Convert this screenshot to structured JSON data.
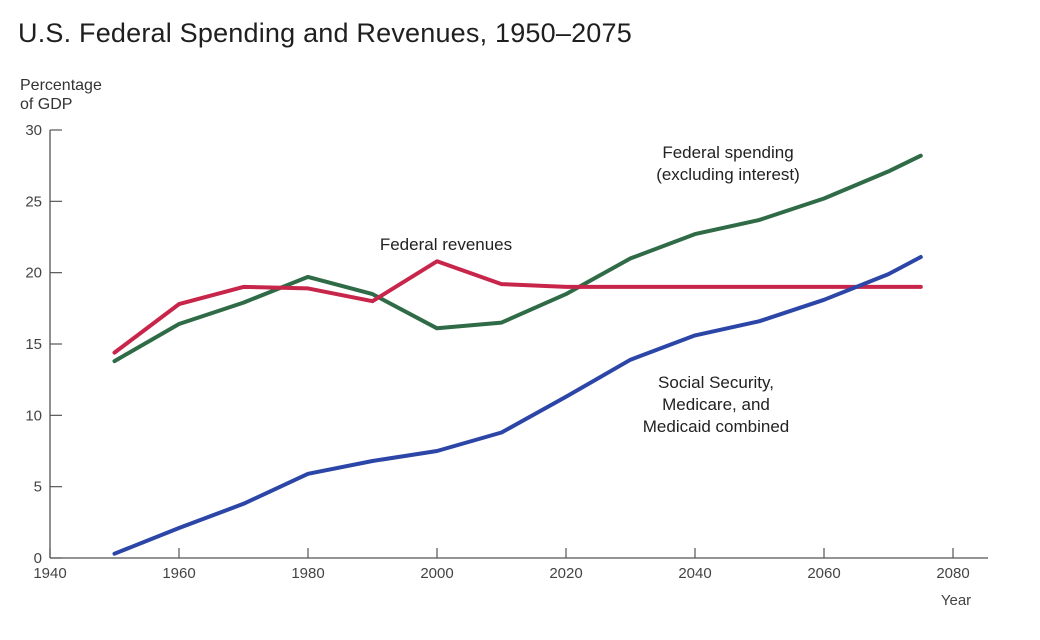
{
  "chart_data": {
    "type": "line",
    "title": "U.S. Federal Spending and Revenues, 1950–2075",
    "ylabel": "Percentage of GDP",
    "ylabel_lines": [
      "Percentage",
      "of GDP"
    ],
    "xlabel": "Year",
    "xlim": [
      1940,
      2085
    ],
    "ylim": [
      0,
      30
    ],
    "xticks": [
      1940,
      1960,
      1980,
      2000,
      2020,
      2040,
      2060,
      2080
    ],
    "yticks": [
      0,
      5,
      10,
      15,
      20,
      25,
      30
    ],
    "grid": false,
    "series": [
      {
        "name": "Federal spending (excluding interest)",
        "label_lines": [
          "Federal spending",
          "(excluding interest)"
        ],
        "color": "#2f6b46",
        "x": [
          1950,
          1960,
          1970,
          1980,
          1990,
          2000,
          2010,
          2020,
          2030,
          2040,
          2050,
          2060,
          2070,
          2075
        ],
        "values": [
          13.8,
          16.4,
          17.9,
          19.7,
          18.5,
          16.1,
          16.5,
          18.5,
          21.0,
          22.7,
          23.7,
          25.2,
          27.1,
          28.2
        ]
      },
      {
        "name": "Federal revenues",
        "label_lines": [
          "Federal revenues"
        ],
        "color": "#c8254a",
        "x": [
          1950,
          1960,
          1970,
          1980,
          1990,
          2000,
          2010,
          2020,
          2030,
          2040,
          2050,
          2060,
          2070,
          2075
        ],
        "values": [
          14.4,
          17.8,
          19.0,
          18.9,
          18.0,
          20.8,
          19.2,
          19.0,
          19.0,
          19.0,
          19.0,
          19.0,
          19.0,
          19.0
        ]
      },
      {
        "name": "Social Security, Medicare, and Medicaid combined",
        "label_lines": [
          "Social Security,",
          "Medicare, and",
          "Medicaid combined"
        ],
        "color": "#2c46a8",
        "x": [
          1950,
          1960,
          1970,
          1980,
          1990,
          2000,
          2010,
          2020,
          2030,
          2040,
          2050,
          2060,
          2070,
          2075
        ],
        "values": [
          0.3,
          2.1,
          3.8,
          5.9,
          6.8,
          7.5,
          8.8,
          11.3,
          13.9,
          15.6,
          16.6,
          18.1,
          19.9,
          21.1
        ]
      }
    ]
  }
}
